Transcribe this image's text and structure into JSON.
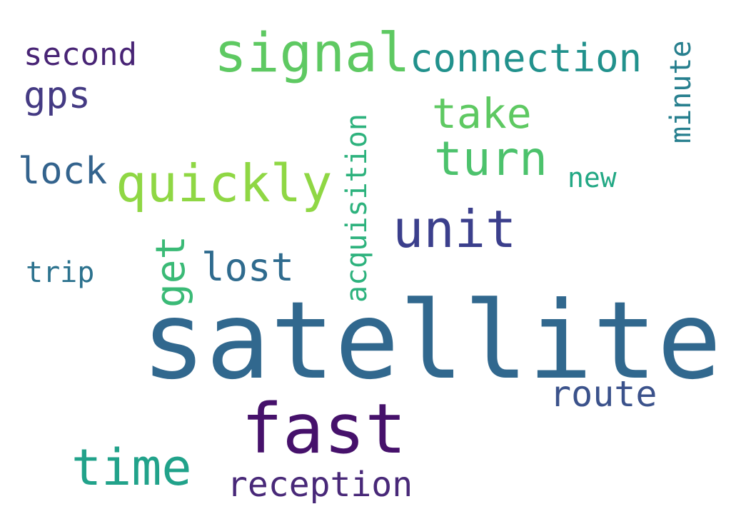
{
  "words": [
    {
      "key": "satellite",
      "text": "satellite",
      "color": "#31688e"
    },
    {
      "key": "fast",
      "text": "fast",
      "color": "#46116b"
    },
    {
      "key": "signal",
      "text": "signal",
      "color": "#5ec962"
    },
    {
      "key": "quickly",
      "text": "quickly",
      "color": "#8fd744"
    },
    {
      "key": "unit",
      "text": "unit",
      "color": "#3b3f8c"
    },
    {
      "key": "time",
      "text": "time",
      "color": "#21a28a"
    },
    {
      "key": "turn",
      "text": "turn",
      "color": "#4cc26c"
    },
    {
      "key": "take",
      "text": "take",
      "color": "#5ec962"
    },
    {
      "key": "connection",
      "text": "connection",
      "color": "#21918c"
    },
    {
      "key": "lost",
      "text": "lost",
      "color": "#2f6b8e"
    },
    {
      "key": "route",
      "text": "route",
      "color": "#3b528b"
    },
    {
      "key": "reception",
      "text": "reception",
      "color": "#482878"
    },
    {
      "key": "gps",
      "text": "gps",
      "color": "#443a83"
    },
    {
      "key": "lock",
      "text": "lock",
      "color": "#33638d"
    },
    {
      "key": "second",
      "text": "second",
      "color": "#482475"
    },
    {
      "key": "trip",
      "text": "trip",
      "color": "#2c728e"
    },
    {
      "key": "new",
      "text": "new",
      "color": "#22a884"
    },
    {
      "key": "get",
      "text": "get",
      "color": "#3aba76"
    },
    {
      "key": "acquisition",
      "text": "acquisition",
      "color": "#2db27d"
    },
    {
      "key": "minute",
      "text": "minute",
      "color": "#277f8e"
    }
  ]
}
